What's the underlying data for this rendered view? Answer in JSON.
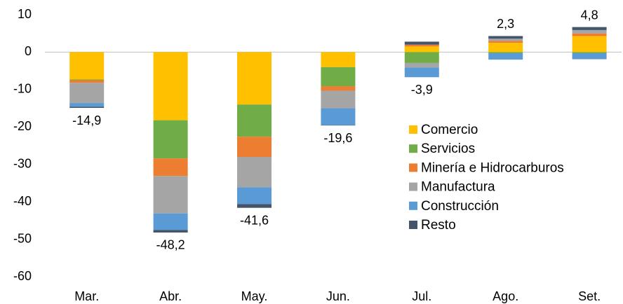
{
  "chart_data": {
    "type": "stacked_bar",
    "categories": [
      "Mar.",
      "Abr.",
      "May.",
      "Jun.",
      "Jul.",
      "Ago.",
      "Set."
    ],
    "series": [
      {
        "name": "Comercio",
        "color": "#FFC000",
        "values": [
          -7.3,
          -18.2,
          -14.0,
          -4.0,
          1.5,
          2.5,
          4.3
        ]
      },
      {
        "name": "Servicios",
        "color": "#70AD47",
        "values": [
          -0.2,
          -10.2,
          -8.6,
          -5.1,
          -2.9,
          -0.3,
          -0.3
        ]
      },
      {
        "name": "Minería e Hidrocarburos",
        "color": "#ED7D31",
        "values": [
          -0.7,
          -4.7,
          -5.4,
          -1.2,
          0.5,
          0.5,
          0.7
        ]
      },
      {
        "name": "Manufactura",
        "color": "#A5A5A5",
        "values": [
          -5.4,
          -10.0,
          -8.1,
          -4.7,
          -1.2,
          0.6,
          0.9
        ]
      },
      {
        "name": "Construcción",
        "color": "#5B9BD5",
        "values": [
          -1.0,
          -4.4,
          -4.5,
          -4.5,
          -2.6,
          -1.7,
          -1.6
        ]
      },
      {
        "name": "Resto",
        "color": "#44546A",
        "values": [
          -0.3,
          -0.7,
          -1.0,
          -0.1,
          0.8,
          0.7,
          0.8
        ]
      }
    ],
    "totals": {
      "values": [
        -14.9,
        -48.2,
        -41.6,
        -19.6,
        -3.9,
        2.3,
        4.8
      ],
      "value_labels": [
        "-14,9",
        "-48,2",
        "-41,6",
        "-19,6",
        "-3,9",
        "2,3",
        "4,8"
      ]
    },
    "ylim": [
      -60,
      10
    ],
    "yticks": [
      -60,
      -50,
      -40,
      -30,
      -20,
      -10,
      0,
      10
    ],
    "grid": false,
    "legend": "right"
  }
}
